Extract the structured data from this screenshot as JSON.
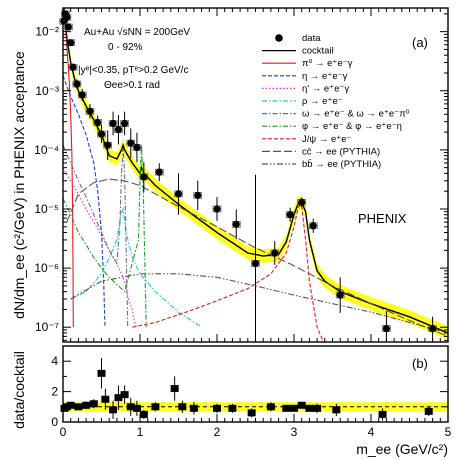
{
  "chart_data": [
    {
      "type": "scatter",
      "panel_tag": "(a)",
      "ylabel": "dN/dm_ee (c²/GeV) in PHENIX acceptance",
      "xlim": [
        0,
        5
      ],
      "ylim_log10": [
        -7.25,
        -1.6
      ],
      "y_scale": "log",
      "y_tick_labels": [
        "10⁻⁷",
        "10⁻⁶",
        "10⁻⁵",
        "10⁻⁴",
        "10⁻³",
        "10⁻²"
      ],
      "y_ticks": [
        1e-07,
        1e-06,
        1e-05,
        0.0001,
        0.001,
        0.01
      ],
      "annotations": [
        "Au+Au √sNN = 200GeV",
        "0 - 92%",
        "|yᵉ|<0.35, pTᵉ>0.2 GeV/c",
        "Θee>0.1 rad"
      ],
      "watermark": "PHENIX",
      "legend_position": "top-right",
      "legend": [
        {
          "label": "data",
          "style": "marker",
          "color": "#000000"
        },
        {
          "label": "cocktail",
          "style": "solid",
          "color": "#000000"
        },
        {
          "label": "π⁰ → e⁺e⁻γ",
          "style": "solid",
          "color": "#e41a1c"
        },
        {
          "label": "η → e⁺e⁻γ",
          "style": "dashed",
          "color": "#1f3fbf"
        },
        {
          "label": "η' → e⁺e⁻γ",
          "style": "dotted",
          "color": "#e02bd8"
        },
        {
          "label": "ρ → e⁺e⁻",
          "style": "dashdot",
          "color": "#19c9d8"
        },
        {
          "label": "ω → e⁺e⁻ & ω → e⁺e⁻π⁰",
          "style": "dashdot",
          "color": "#6f6f6f"
        },
        {
          "label": "φ → e⁺e⁻ & φ → e⁺e⁻η",
          "style": "dashdot",
          "color": "#1d9a2c"
        },
        {
          "label": "J/ψ → e⁺e⁻",
          "style": "dashed",
          "color": "#d62020"
        },
        {
          "label": "cc̄ → ee (PYTHIA)",
          "style": "longdash",
          "color": "#555555"
        },
        {
          "label": "bb̄ → ee (PYTHIA)",
          "style": "dashdotdot",
          "color": "#6e4a4a"
        }
      ],
      "series": [
        {
          "name": "data",
          "x": [
            0.01,
            0.03,
            0.05,
            0.07,
            0.1,
            0.13,
            0.18,
            0.25,
            0.35,
            0.45,
            0.5,
            0.58,
            0.65,
            0.72,
            0.8,
            0.88,
            0.96,
            1.05,
            1.25,
            1.5,
            1.75,
            2.0,
            2.25,
            2.5,
            2.75,
            2.95,
            3.1,
            3.25,
            3.6,
            4.2,
            4.8
          ],
          "y": [
            0.015,
            0.02,
            0.0175,
            0.012,
            0.0065,
            0.0025,
            0.0013,
            0.00085,
            0.00045,
            0.00029,
            0.000185,
            0.00012,
            0.00028,
            0.00022,
            0.00028,
            0.00013,
            0.00011,
            3.5e-05,
            4.2e-05,
            1.8e-05,
            1.7e-05,
            1e-05,
            5.5e-06,
            1.2e-06,
            1.8e-06,
            8e-06,
            1.3e-05,
            5.2e-06,
            3.5e-07,
            9.5e-08,
            9.5e-08
          ],
          "err_log10": [
            0.03,
            0.03,
            0.03,
            0.04,
            0.05,
            0.06,
            0.08,
            0.1,
            0.12,
            0.12,
            0.15,
            0.25,
            0.2,
            0.25,
            0.2,
            0.25,
            0.25,
            0.25,
            0.15,
            0.35,
            0.25,
            0.2,
            0.25,
            1.5,
            0.2,
            0.12,
            0.08,
            0.12,
            0.3,
            0.3,
            0.2
          ]
        },
        {
          "name": "cocktail",
          "x": [
            0.0,
            0.02,
            0.05,
            0.1,
            0.15,
            0.2,
            0.3,
            0.4,
            0.5,
            0.55,
            0.6,
            0.7,
            0.76,
            0.78,
            0.8,
            0.9,
            1.0,
            1.02,
            1.05,
            1.2,
            1.5,
            2.0,
            2.4,
            2.6,
            2.8,
            2.9,
            3.0,
            3.05,
            3.1,
            3.15,
            3.2,
            3.3,
            3.4,
            3.6,
            4.0,
            4.5,
            5.0
          ],
          "y": [
            0.05,
            0.02,
            0.008,
            0.003,
            0.0016,
            0.001,
            0.00055,
            0.00032,
            0.00018,
            0.00012,
            8e-05,
            7e-05,
            0.0001,
            0.00012,
            0.0001,
            6e-05,
            4e-05,
            5e-05,
            4e-05,
            2.5e-05,
            1.2e-05,
            4e-06,
            1.8e-06,
            1.6e-06,
            1.7e-06,
            2.8e-06,
            8e-06,
            1.2e-05,
            1.3e-05,
            9e-06,
            3e-06,
            9e-07,
            6e-07,
            4e-07,
            2.5e-07,
            1.5e-07,
            8e-08
          ]
        },
        {
          "name": "π⁰ → e⁺e⁻γ",
          "x": [
            0.0,
            0.02,
            0.05,
            0.08,
            0.1,
            0.115,
            0.125,
            0.13,
            0.134
          ],
          "y": [
            0.05,
            0.02,
            0.006,
            0.0015,
            0.0004,
            8e-05,
            1e-05,
            1e-06,
            1e-07
          ]
        },
        {
          "name": "η → e⁺e⁻γ",
          "x": [
            0.0,
            0.05,
            0.1,
            0.2,
            0.3,
            0.4,
            0.45,
            0.5,
            0.53,
            0.545
          ],
          "y": [
            0.0018,
            0.0012,
            0.0008,
            0.0004,
            0.00018,
            6e-05,
            2e-05,
            4e-06,
            5e-07,
            1e-07
          ]
        },
        {
          "name": "η' → e⁺e⁻γ",
          "x": [
            0.0,
            0.1,
            0.2,
            0.3,
            0.4,
            0.5,
            0.6,
            0.7,
            0.8,
            0.85,
            0.9,
            0.93,
            0.955
          ],
          "y": [
            5e-05,
            3e-05,
            1.8e-05,
            1e-05,
            6e-06,
            3.5e-06,
            2e-06,
            1.2e-06,
            6e-07,
            3e-07,
            2e-07,
            1.2e-07,
            1e-07
          ]
        },
        {
          "name": "ρ → e⁺e⁻",
          "x": [
            0.1,
            0.3,
            0.5,
            0.6,
            0.7,
            0.75,
            0.78,
            0.82,
            0.9,
            1.0,
            1.2,
            1.5,
            1.8
          ],
          "y": [
            3e-07,
            4e-07,
            8e-07,
            1.5e-06,
            3e-06,
            8e-06,
            1e-05,
            4e-06,
            1.5e-06,
            8e-07,
            4e-07,
            1.8e-07,
            1e-07
          ]
        },
        {
          "name": "ω → e⁺e⁻ & ω → e⁺e⁻π⁰",
          "x": [
            0.0,
            0.1,
            0.2,
            0.3,
            0.4,
            0.5,
            0.6,
            0.65,
            0.7,
            0.74,
            0.76,
            0.78,
            0.8,
            0.84
          ],
          "y": [
            0.00012,
            6e-05,
            3e-05,
            1.6e-05,
            8e-06,
            4e-06,
            2e-06,
            1.5e-06,
            1.2e-06,
            6e-06,
            4e-05,
            0.00011,
            4e-05,
            1e-07
          ]
        },
        {
          "name": "φ → e⁺e⁻ & φ → e⁺e⁻η",
          "x": [
            0.0,
            0.1,
            0.2,
            0.3,
            0.4,
            0.5,
            0.6,
            0.8,
            0.98,
            1.0,
            1.02,
            1.04,
            1.08
          ],
          "y": [
            1.5e-05,
            8e-06,
            4e-06,
            2.5e-06,
            1.5e-06,
            1e-06,
            7e-07,
            4e-07,
            3e-06,
            3e-05,
            0.00012,
            3e-05,
            1e-07
          ]
        },
        {
          "name": "J/ψ → e⁺e⁻",
          "x": [
            0.9,
            1.2,
            1.6,
            2.0,
            2.4,
            2.7,
            2.9,
            3.0,
            3.05,
            3.08,
            3.1,
            3.15,
            3.2,
            3.3,
            3.4
          ],
          "y": [
            1e-07,
            1.2e-07,
            1.8e-07,
            2.8e-07,
            4.5e-07,
            8e-07,
            1.8e-06,
            5e-06,
            1e-05,
            1.2e-05,
            1.1e-05,
            3e-06,
            6e-07,
            1e-07,
            5e-08
          ]
        },
        {
          "name": "cc̄ → ee (PYTHIA)",
          "x": [
            0.05,
            0.2,
            0.4,
            0.6,
            0.8,
            1.0,
            1.2,
            1.5,
            2.0,
            2.5,
            3.0,
            3.5,
            4.0,
            4.5,
            5.0
          ],
          "y": [
            6e-06,
            1.8e-05,
            2.8e-05,
            3.2e-05,
            3e-05,
            2.5e-05,
            1.8e-05,
            1.1e-05,
            5e-06,
            2.2e-06,
            1.1e-06,
            5e-07,
            2.5e-07,
            1.3e-07,
            7e-08
          ]
        },
        {
          "name": "bb̄ → ee (PYTHIA)",
          "x": [
            0.1,
            0.5,
            1.0,
            1.5,
            2.0,
            2.5,
            3.0,
            3.5,
            4.0,
            4.5,
            5.0
          ],
          "y": [
            3e-07,
            6e-07,
            8e-07,
            8e-07,
            7e-07,
            5e-07,
            3.5e-07,
            2.5e-07,
            1.8e-07,
            1.2e-07,
            8e-08
          ]
        }
      ]
    },
    {
      "type": "scatter",
      "panel_tag": "(b)",
      "xlabel": "m_ee (GeV/c²)",
      "ylabel": "data/cocktail",
      "xlim": [
        0,
        5
      ],
      "ylim": [
        0,
        5
      ],
      "x_ticks": [
        0,
        1,
        2,
        3,
        4,
        5
      ],
      "y_ticks": [
        0,
        2,
        4
      ],
      "reference_line": 1,
      "band_color": "#ffff00",
      "x": [
        0.02,
        0.05,
        0.1,
        0.2,
        0.3,
        0.4,
        0.5,
        0.55,
        0.65,
        0.72,
        0.8,
        0.88,
        0.96,
        1.05,
        1.2,
        1.45,
        1.55,
        1.7,
        2.0,
        2.2,
        2.45,
        2.7,
        2.9,
        3.0,
        3.1,
        3.2,
        3.3,
        3.55,
        4.15,
        4.75
      ],
      "y": [
        0.9,
        1.0,
        1.1,
        1.0,
        1.1,
        1.2,
        3.2,
        1.5,
        0.8,
        1.6,
        1.8,
        1.0,
        0.9,
        0.5,
        1.0,
        2.2,
        1.0,
        0.9,
        0.9,
        0.9,
        0.6,
        1.0,
        0.9,
        0.9,
        1.1,
        0.9,
        0.9,
        0.8,
        0.5,
        0.7
      ],
      "err": [
        0.1,
        0.1,
        0.15,
        0.2,
        0.25,
        0.3,
        1.0,
        0.7,
        0.6,
        0.8,
        0.6,
        0.6,
        0.5,
        0.3,
        0.3,
        0.8,
        0.4,
        0.4,
        0.3,
        0.3,
        0.3,
        0.3,
        0.2,
        0.2,
        0.2,
        0.2,
        0.3,
        0.4,
        0.4,
        0.3
      ]
    }
  ]
}
